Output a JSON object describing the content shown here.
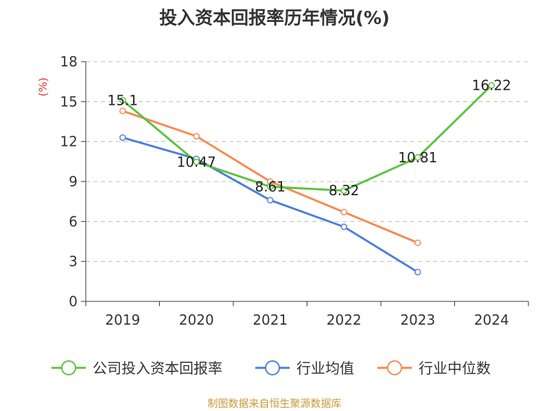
{
  "header": {
    "title": "投入资本回报率历年情况(%)"
  },
  "footer": {
    "source": "制图数据来自恒生聚源数据库"
  },
  "colors": {
    "company": "#5cc33c",
    "industry_avg": "#4a7fd8",
    "industry_median": "#f58a4f",
    "unit": "#e03030",
    "grid": "#bbbbbb",
    "axis": "#333333"
  },
  "chart_data": {
    "type": "line",
    "title": "投入资本回报率历年情况(%)",
    "xlabel": "",
    "ylabel": "(%)",
    "ylim": [
      0,
      18
    ],
    "yticks": [
      0,
      3,
      6,
      9,
      12,
      15,
      18
    ],
    "categories": [
      "2019",
      "2020",
      "2021",
      "2022",
      "2023",
      "2024"
    ],
    "grid": true,
    "legend_position": "bottom",
    "series": [
      {
        "name": "公司投入资本回报率",
        "color_key": "company",
        "values": [
          15.1,
          10.47,
          8.61,
          8.32,
          10.81,
          16.22
        ],
        "labels": [
          "15.1",
          "10.47",
          "8.61",
          "8.32",
          "10.81",
          "16.22"
        ]
      },
      {
        "name": "行业均值",
        "color_key": "industry_avg",
        "values": [
          12.3,
          10.7,
          7.6,
          5.6,
          2.2,
          null
        ]
      },
      {
        "name": "行业中位数",
        "color_key": "industry_median",
        "values": [
          14.3,
          12.4,
          9.0,
          6.7,
          4.4,
          null
        ]
      }
    ]
  }
}
